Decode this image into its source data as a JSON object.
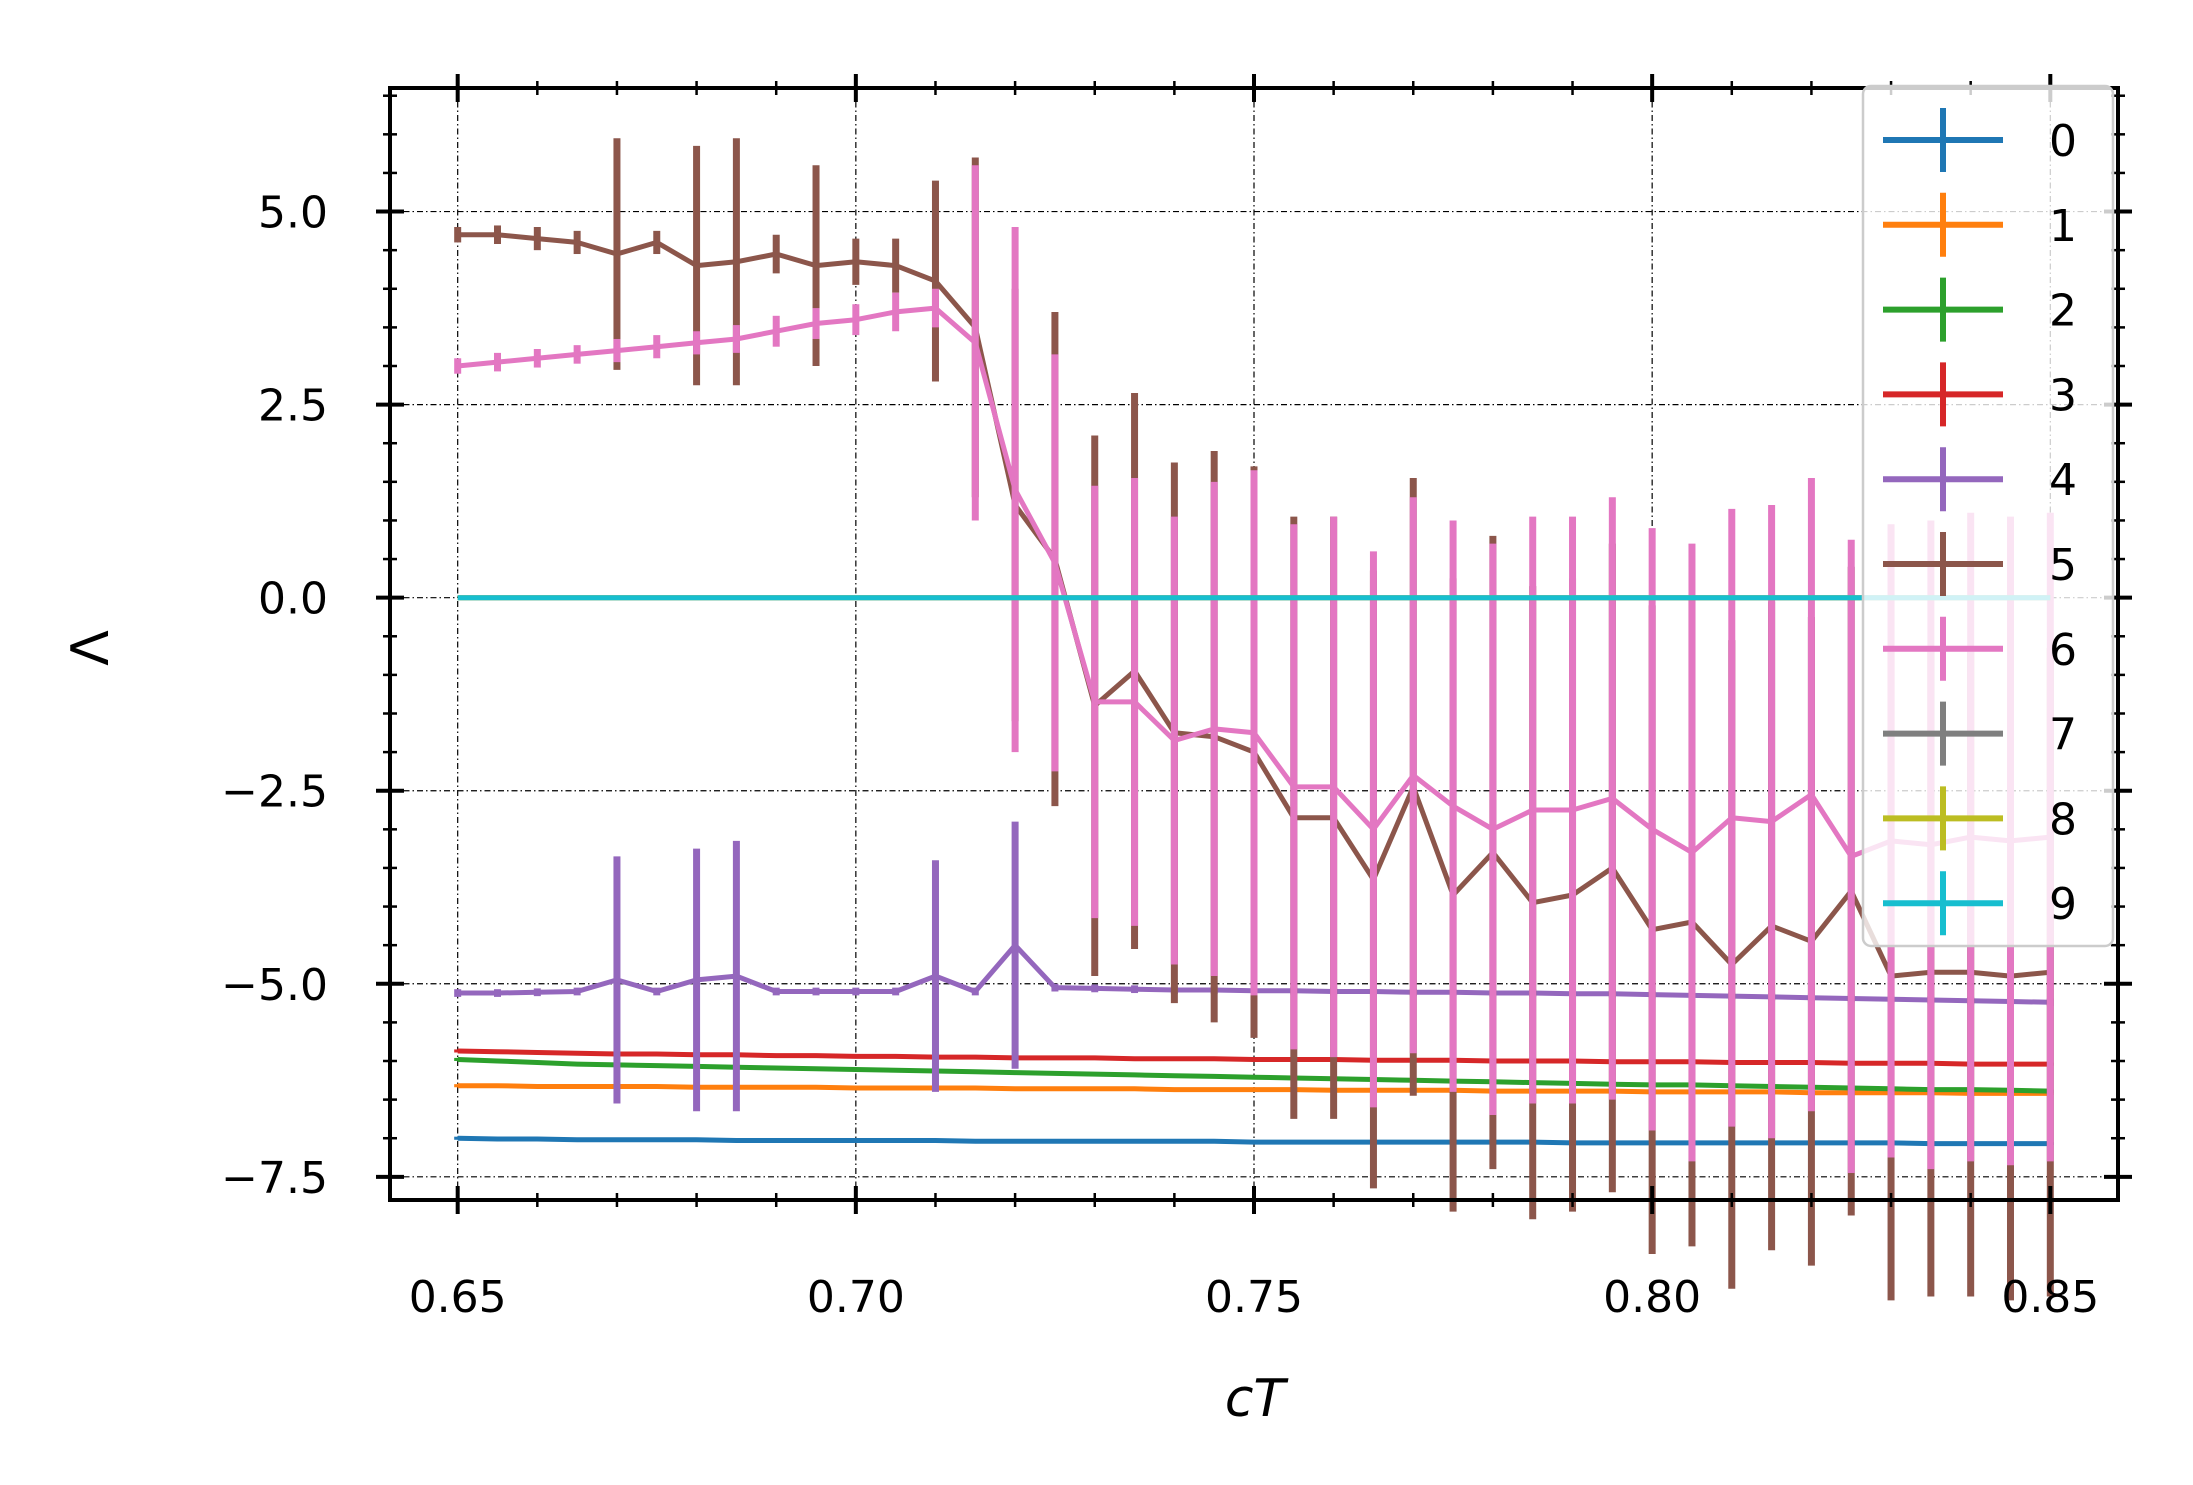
{
  "chart_data": {
    "type": "line",
    "xlabel": "cT",
    "ylabel": "Λ",
    "xlim": [
      0.6415,
      0.8585
    ],
    "ylim": [
      -7.8,
      6.6
    ],
    "xticks": [
      0.65,
      0.7,
      0.75,
      0.8,
      0.85
    ],
    "xtick_labels": [
      "0.65",
      "0.70",
      "0.75",
      "0.80",
      "0.85"
    ],
    "yticks": [
      5.0,
      2.5,
      0.0,
      -2.5,
      -5.0,
      -7.5
    ],
    "ytick_labels": [
      "5.0",
      "2.5",
      "0.0",
      "−2.5",
      "−5.0",
      "−7.5"
    ],
    "grid": true,
    "legend_position": "top-right",
    "error_bars": true,
    "x": [
      0.65,
      0.655,
      0.66,
      0.665,
      0.67,
      0.675,
      0.68,
      0.685,
      0.69,
      0.695,
      0.7,
      0.705,
      0.71,
      0.715,
      0.72,
      0.725,
      0.73,
      0.735,
      0.74,
      0.745,
      0.75,
      0.755,
      0.76,
      0.765,
      0.77,
      0.775,
      0.78,
      0.785,
      0.79,
      0.795,
      0.8,
      0.805,
      0.81,
      0.815,
      0.82,
      0.825,
      0.83,
      0.835,
      0.84,
      0.845,
      0.85
    ],
    "series": [
      {
        "name": "0",
        "color": "#1f77b4",
        "values": [
          -7.0,
          -7.01,
          -7.01,
          -7.02,
          -7.02,
          -7.02,
          -7.02,
          -7.03,
          -7.03,
          -7.03,
          -7.03,
          -7.03,
          -7.03,
          -7.04,
          -7.04,
          -7.04,
          -7.04,
          -7.04,
          -7.04,
          -7.04,
          -7.05,
          -7.05,
          -7.05,
          -7.05,
          -7.05,
          -7.05,
          -7.05,
          -7.05,
          -7.06,
          -7.06,
          -7.06,
          -7.06,
          -7.06,
          -7.06,
          -7.06,
          -7.06,
          -7.06,
          -7.07,
          -7.07,
          -7.07,
          -7.07
        ],
        "errors": [
          0.02,
          0.02,
          0.02,
          0.02,
          0.02,
          0.02,
          0.02,
          0.02,
          0.02,
          0.02,
          0.02,
          0.02,
          0.02,
          0.02,
          0.02,
          0.02,
          0.02,
          0.02,
          0.02,
          0.02,
          0.02,
          0.02,
          0.02,
          0.02,
          0.02,
          0.02,
          0.02,
          0.02,
          0.02,
          0.02,
          0.02,
          0.02,
          0.02,
          0.02,
          0.02,
          0.02,
          0.02,
          0.02,
          0.02,
          0.02,
          0.02
        ]
      },
      {
        "name": "1",
        "color": "#ff7f0e",
        "values": [
          -6.32,
          -6.32,
          -6.33,
          -6.33,
          -6.33,
          -6.33,
          -6.34,
          -6.34,
          -6.34,
          -6.34,
          -6.35,
          -6.35,
          -6.35,
          -6.35,
          -6.36,
          -6.36,
          -6.36,
          -6.36,
          -6.37,
          -6.37,
          -6.37,
          -6.37,
          -6.38,
          -6.38,
          -6.38,
          -6.38,
          -6.39,
          -6.39,
          -6.39,
          -6.39,
          -6.4,
          -6.4,
          -6.4,
          -6.4,
          -6.41,
          -6.41,
          -6.41,
          -6.41,
          -6.42,
          -6.42,
          -6.42
        ],
        "errors": [
          0.02,
          0.02,
          0.02,
          0.02,
          0.02,
          0.02,
          0.02,
          0.02,
          0.02,
          0.02,
          0.02,
          0.02,
          0.02,
          0.02,
          0.02,
          0.02,
          0.02,
          0.02,
          0.02,
          0.02,
          0.02,
          0.02,
          0.02,
          0.02,
          0.02,
          0.02,
          0.02,
          0.02,
          0.02,
          0.02,
          0.02,
          0.02,
          0.02,
          0.02,
          0.02,
          0.02,
          0.02,
          0.02,
          0.02,
          0.02,
          0.02
        ]
      },
      {
        "name": "2",
        "color": "#2ca02c",
        "values": [
          -5.98,
          -6.0,
          -6.02,
          -6.04,
          -6.05,
          -6.06,
          -6.07,
          -6.08,
          -6.09,
          -6.1,
          -6.11,
          -6.12,
          -6.13,
          -6.14,
          -6.15,
          -6.16,
          -6.17,
          -6.18,
          -6.19,
          -6.2,
          -6.21,
          -6.22,
          -6.23,
          -6.24,
          -6.25,
          -6.26,
          -6.27,
          -6.28,
          -6.29,
          -6.3,
          -6.31,
          -6.31,
          -6.32,
          -6.33,
          -6.34,
          -6.35,
          -6.36,
          -6.37,
          -6.37,
          -6.38,
          -6.39
        ],
        "errors": [
          0.02,
          0.02,
          0.02,
          0.02,
          0.02,
          0.02,
          0.02,
          0.02,
          0.02,
          0.02,
          0.02,
          0.02,
          0.02,
          0.02,
          0.02,
          0.02,
          0.02,
          0.02,
          0.02,
          0.02,
          0.02,
          0.02,
          0.02,
          0.02,
          0.02,
          0.02,
          0.02,
          0.02,
          0.02,
          0.02,
          0.02,
          0.02,
          0.02,
          0.02,
          0.02,
          0.02,
          0.02,
          0.02,
          0.02,
          0.02,
          0.02
        ]
      },
      {
        "name": "3",
        "color": "#d62728",
        "values": [
          -5.87,
          -5.88,
          -5.89,
          -5.9,
          -5.91,
          -5.91,
          -5.92,
          -5.92,
          -5.93,
          -5.93,
          -5.94,
          -5.94,
          -5.95,
          -5.95,
          -5.96,
          -5.96,
          -5.96,
          -5.97,
          -5.97,
          -5.97,
          -5.98,
          -5.98,
          -5.98,
          -5.99,
          -5.99,
          -5.99,
          -6.0,
          -6.0,
          -6.0,
          -6.01,
          -6.01,
          -6.01,
          -6.02,
          -6.02,
          -6.02,
          -6.03,
          -6.03,
          -6.03,
          -6.04,
          -6.04,
          -6.04
        ],
        "errors": [
          0.02,
          0.02,
          0.02,
          0.02,
          0.02,
          0.02,
          0.02,
          0.02,
          0.02,
          0.02,
          0.02,
          0.02,
          0.02,
          0.02,
          0.02,
          0.02,
          0.02,
          0.02,
          0.02,
          0.02,
          0.02,
          0.02,
          0.02,
          0.02,
          0.02,
          0.02,
          0.02,
          0.02,
          0.02,
          0.02,
          0.02,
          0.02,
          0.02,
          0.02,
          0.02,
          0.02,
          0.02,
          0.02,
          0.02,
          0.02,
          0.02
        ]
      },
      {
        "name": "4",
        "color": "#9467bd",
        "values": [
          -5.12,
          -5.12,
          -5.11,
          -5.1,
          -4.95,
          -5.1,
          -4.95,
          -4.9,
          -5.1,
          -5.1,
          -5.1,
          -5.1,
          -4.9,
          -5.1,
          -4.5,
          -5.05,
          -5.06,
          -5.07,
          -5.08,
          -5.08,
          -5.09,
          -5.09,
          -5.1,
          -5.1,
          -5.11,
          -5.11,
          -5.12,
          -5.12,
          -5.13,
          -5.13,
          -5.14,
          -5.15,
          -5.16,
          -5.17,
          -5.18,
          -5.19,
          -5.2,
          -5.21,
          -5.22,
          -5.23,
          -5.24
        ],
        "errors": [
          0.05,
          0.05,
          0.05,
          0.05,
          1.6,
          0.05,
          1.7,
          1.75,
          0.05,
          0.05,
          0.05,
          0.05,
          1.5,
          0.05,
          1.6,
          0.05,
          0.05,
          0.05,
          0.05,
          0.05,
          0.05,
          0.05,
          0.05,
          0.05,
          0.05,
          0.05,
          0.05,
          0.05,
          0.05,
          0.05,
          0.05,
          0.05,
          0.05,
          0.05,
          0.05,
          0.05,
          0.05,
          0.05,
          0.05,
          0.05,
          0.05
        ]
      },
      {
        "name": "5",
        "color": "#8c564b",
        "values": [
          4.7,
          4.7,
          4.65,
          4.6,
          4.45,
          4.6,
          4.3,
          4.35,
          4.45,
          4.3,
          4.35,
          4.3,
          4.1,
          3.5,
          1.2,
          0.5,
          -1.4,
          -0.95,
          -1.75,
          -1.8,
          -2.0,
          -2.85,
          -2.85,
          -3.65,
          -2.45,
          -3.85,
          -3.3,
          -3.95,
          -3.85,
          -3.5,
          -4.3,
          -4.2,
          -4.75,
          -4.25,
          -4.45,
          -3.8,
          -4.9,
          -4.85,
          -4.85,
          -4.9,
          -4.85
        ],
        "errors": [
          0.1,
          0.12,
          0.15,
          0.15,
          1.5,
          0.15,
          1.55,
          1.6,
          0.25,
          1.3,
          0.3,
          0.35,
          1.3,
          2.2,
          2.8,
          3.2,
          3.5,
          3.6,
          3.5,
          3.7,
          3.7,
          3.9,
          3.9,
          4.0,
          4.0,
          4.1,
          4.1,
          4.1,
          4.1,
          4.2,
          4.2,
          4.2,
          4.2,
          4.2,
          4.2,
          4.2,
          4.2,
          4.2,
          4.2,
          4.2,
          4.2
        ]
      },
      {
        "name": "6",
        "color": "#e377c2",
        "values": [
          3.0,
          3.05,
          3.1,
          3.15,
          3.2,
          3.25,
          3.3,
          3.35,
          3.45,
          3.55,
          3.6,
          3.7,
          3.75,
          3.3,
          1.4,
          0.45,
          -1.35,
          -1.35,
          -1.85,
          -1.7,
          -1.75,
          -2.45,
          -2.45,
          -3.0,
          -2.3,
          -2.7,
          -3.0,
          -2.75,
          -2.75,
          -2.6,
          -3.0,
          -3.3,
          -2.85,
          -2.9,
          -2.55,
          -3.35,
          -3.15,
          -3.2,
          -3.1,
          -3.15,
          -3.1
        ],
        "errors": [
          0.1,
          0.12,
          0.12,
          0.12,
          0.15,
          0.15,
          0.15,
          0.18,
          0.2,
          0.2,
          0.2,
          0.25,
          0.25,
          2.3,
          3.4,
          2.7,
          2.8,
          2.9,
          2.9,
          3.2,
          3.4,
          3.4,
          3.5,
          3.6,
          3.6,
          3.7,
          3.7,
          3.8,
          3.8,
          3.9,
          3.9,
          4.0,
          4.0,
          4.1,
          4.1,
          4.1,
          4.1,
          4.2,
          4.2,
          4.2,
          4.2
        ]
      },
      {
        "name": "7",
        "color": "#7f7f7f",
        "values": [
          0,
          0,
          0,
          0,
          0,
          0,
          0,
          0,
          0,
          0,
          0,
          0,
          0,
          0,
          0,
          0,
          0,
          0,
          0,
          0,
          0,
          0,
          0,
          0,
          0,
          0,
          0,
          0,
          0,
          0,
          0,
          0,
          0,
          0,
          0,
          0,
          0,
          0,
          0,
          0,
          0
        ],
        "errors": [
          0,
          0,
          0,
          0,
          0,
          0,
          0,
          0,
          0,
          0,
          0,
          0,
          0,
          0,
          0,
          0,
          0,
          0,
          0,
          0,
          0,
          0,
          0,
          0,
          0,
          0,
          0,
          0,
          0,
          0,
          0,
          0,
          0,
          0,
          0,
          0,
          0,
          0,
          0,
          0,
          0
        ]
      },
      {
        "name": "8",
        "color": "#bcbd22",
        "values": [
          0,
          0,
          0,
          0,
          0,
          0,
          0,
          0,
          0,
          0,
          0,
          0,
          0,
          0,
          0,
          0,
          0,
          0,
          0,
          0,
          0,
          0,
          0,
          0,
          0,
          0,
          0,
          0,
          0,
          0,
          0,
          0,
          0,
          0,
          0,
          0,
          0,
          0,
          0,
          0,
          0
        ],
        "errors": [
          0,
          0,
          0,
          0,
          0,
          0,
          0,
          0,
          0,
          0,
          0,
          0,
          0,
          0,
          0,
          0,
          0,
          0,
          0,
          0,
          0,
          0,
          0,
          0,
          0,
          0,
          0,
          0,
          0,
          0,
          0,
          0,
          0,
          0,
          0,
          0,
          0,
          0,
          0,
          0,
          0
        ]
      },
      {
        "name": "9",
        "color": "#17becf",
        "values": [
          0,
          0,
          0,
          0,
          0,
          0,
          0,
          0,
          0,
          0,
          0,
          0,
          0,
          0,
          0,
          0,
          0,
          0,
          0,
          0,
          0,
          0,
          0,
          0,
          0,
          0,
          0,
          0,
          0,
          0,
          0,
          0,
          0,
          0,
          0,
          0,
          0,
          0,
          0,
          0,
          0
        ],
        "errors": [
          0,
          0,
          0,
          0,
          0,
          0,
          0,
          0,
          0,
          0,
          0,
          0,
          0,
          0,
          0,
          0,
          0,
          0,
          0,
          0,
          0,
          0,
          0,
          0,
          0,
          0,
          0,
          0,
          0,
          0,
          0,
          0,
          0,
          0,
          0,
          0,
          0,
          0,
          0,
          0,
          0
        ]
      }
    ]
  }
}
